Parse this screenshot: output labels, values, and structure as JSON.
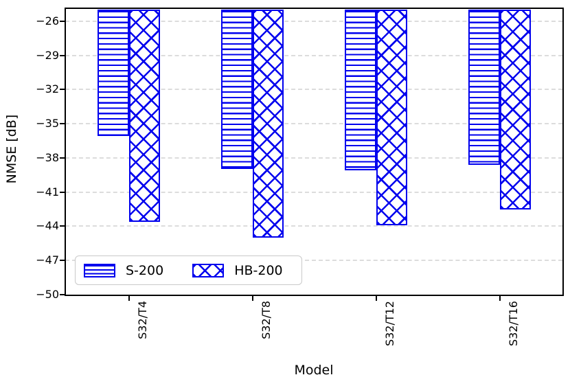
{
  "figure": {
    "background_color": "#ffffff",
    "bar_color": "#0000ee",
    "grid_color": "#dcdcdc",
    "axis_color": "#000000"
  },
  "chart_data": {
    "type": "bar",
    "title": "",
    "xlabel": "Model",
    "ylabel": "NMSE [dB]",
    "categories": [
      "S32/T4",
      "S32/T8",
      "S32/T12",
      "S32/T16"
    ],
    "series": [
      {
        "name": "S-200",
        "hatch": "horizontal-lines",
        "values": [
          -36.1,
          -39.0,
          -39.1,
          -38.6
        ]
      },
      {
        "name": "HB-200",
        "hatch": "cross-x",
        "values": [
          -43.6,
          -45.0,
          -43.9,
          -42.5
        ]
      }
    ],
    "ylim": [
      -50,
      -24.9
    ],
    "yticks": [
      -26,
      -29,
      -32,
      -35,
      -38,
      -41,
      -44,
      -47,
      -50
    ],
    "grid": "horizontal-dashed",
    "legend_position": "lower-left",
    "bars_hang_from_top": true
  }
}
